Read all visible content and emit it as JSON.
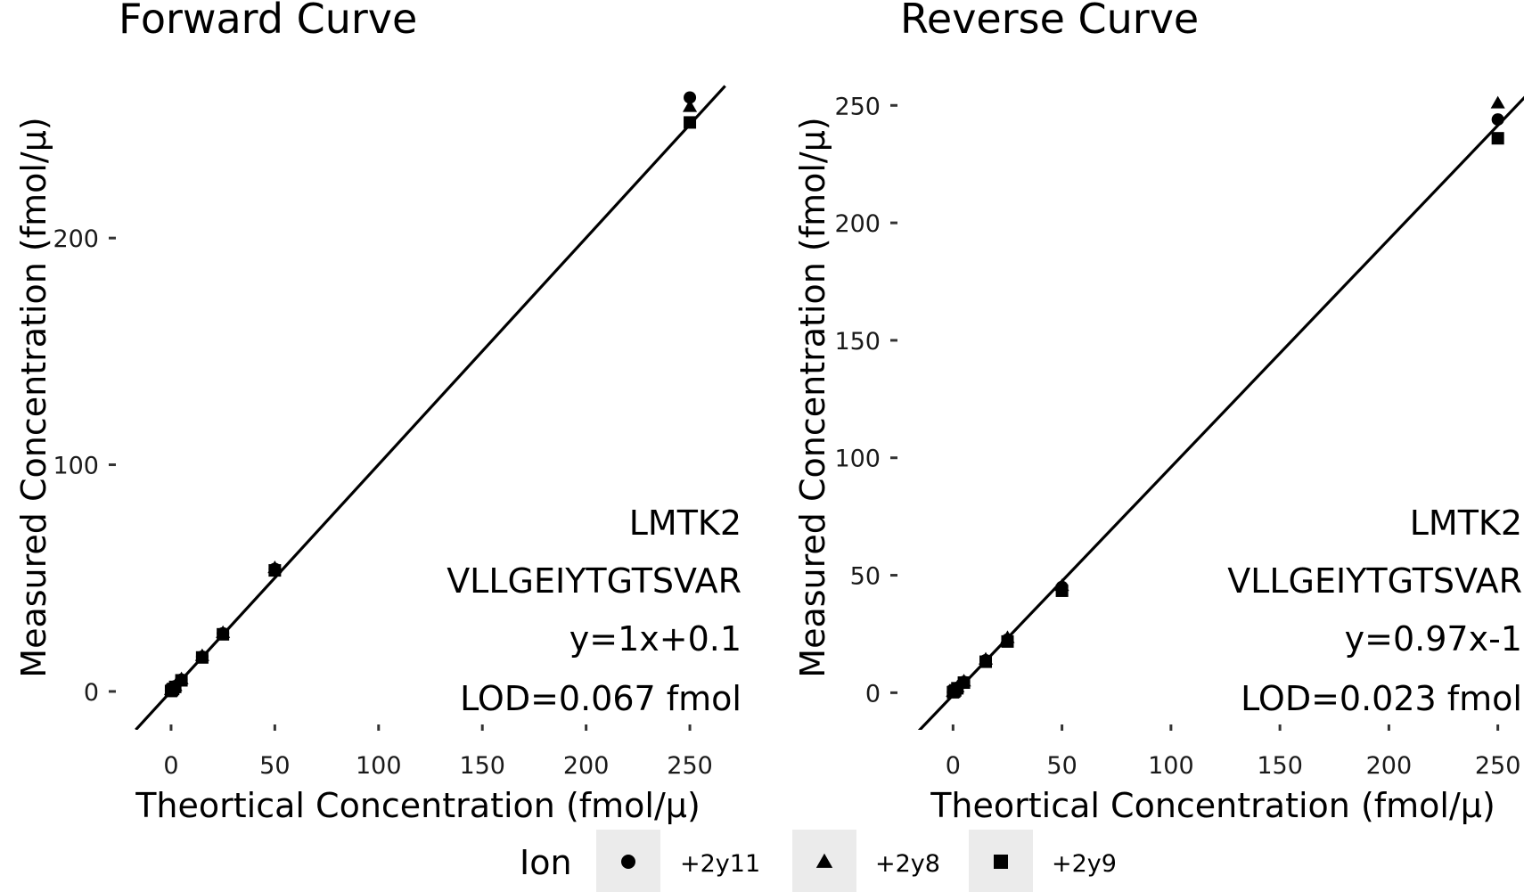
{
  "chart_data": [
    {
      "type": "scatter",
      "title": "Forward Curve",
      "xlabel": "Theortical Concentration (fmol/µ)",
      "ylabel": "Measured Concentration (fmol/µ)",
      "xlim": [
        -12,
        262
      ],
      "ylim": [
        -13,
        272
      ],
      "xticks": [
        0,
        50,
        100,
        150,
        200,
        250
      ],
      "yticks": [
        0,
        100,
        200
      ],
      "grid": false,
      "fit_line": {
        "slope": 1.0,
        "intercept": 0.1
      },
      "annotations": [
        "LMTK2",
        "VLLGEIYTGTSVAR",
        "y=1x+0.1",
        "LOD=0.067 fmol"
      ],
      "series": [
        {
          "name": "+2y11",
          "marker": "circle",
          "x": [
            0,
            0.5,
            1,
            2,
            5,
            15,
            25,
            50,
            250
          ],
          "y": [
            0.4,
            0.8,
            1.3,
            2.3,
            5.2,
            15.3,
            25.6,
            54.0,
            262
          ]
        },
        {
          "name": "+2y8",
          "marker": "triangle",
          "x": [
            0,
            0.5,
            1,
            2,
            5,
            15,
            25,
            50,
            250
          ],
          "y": [
            0.7,
            1.0,
            1.6,
            2.6,
            5.6,
            15.8,
            26.0,
            54.6,
            258
          ]
        },
        {
          "name": "+2y9",
          "marker": "square",
          "x": [
            0,
            0.5,
            1,
            2,
            5,
            15,
            25,
            50,
            250
          ],
          "y": [
            0.2,
            0.6,
            1.1,
            2.0,
            4.9,
            15.0,
            25.2,
            53.4,
            251
          ]
        }
      ]
    },
    {
      "type": "scatter",
      "title": "Reverse Curve",
      "xlabel": "Theortical Concentration (fmol/µ)",
      "ylabel": "Measured Concentration (fmol/µ)",
      "xlim": [
        -12,
        262
      ],
      "ylim": [
        -12,
        263
      ],
      "xticks": [
        0,
        50,
        100,
        150,
        200,
        250
      ],
      "yticks": [
        0,
        50,
        100,
        150,
        200,
        250
      ],
      "grid": false,
      "fit_line": {
        "slope": 0.97,
        "intercept": -1
      },
      "annotations": [
        "LMTK2",
        "VLLGEIYTGTSVAR",
        "y=0.97x-1",
        "LOD=0.023 fmol"
      ],
      "series": [
        {
          "name": "+2y11",
          "marker": "circle",
          "x": [
            0,
            0.5,
            1,
            2,
            5,
            15,
            25,
            50,
            250
          ],
          "y": [
            0.3,
            0.7,
            1.2,
            2.1,
            4.6,
            13.8,
            22.6,
            45.0,
            244
          ]
        },
        {
          "name": "+2y8",
          "marker": "triangle",
          "x": [
            0,
            0.5,
            1,
            2,
            5,
            15,
            25,
            50,
            250
          ],
          "y": [
            0.6,
            1.0,
            1.5,
            2.5,
            5.0,
            14.3,
            23.5,
            45.6,
            251
          ]
        },
        {
          "name": "+2y9",
          "marker": "square",
          "x": [
            0,
            0.5,
            1,
            2,
            5,
            15,
            25,
            50,
            250
          ],
          "y": [
            0.2,
            0.5,
            1.0,
            1.9,
            4.3,
            13.2,
            21.8,
            43.4,
            236
          ]
        }
      ]
    }
  ],
  "legend": {
    "title": "Ion",
    "position": "bottom",
    "items": [
      {
        "label": "+2y11",
        "marker": "circle"
      },
      {
        "label": "+2y8",
        "marker": "triangle"
      },
      {
        "label": "+2y9",
        "marker": "square"
      }
    ]
  }
}
